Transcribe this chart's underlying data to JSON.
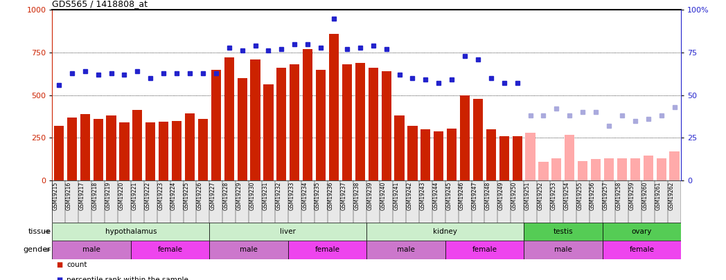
{
  "title": "GDS565 / 1418808_at",
  "samples": [
    "GSM19215",
    "GSM19216",
    "GSM19217",
    "GSM19218",
    "GSM19219",
    "GSM19220",
    "GSM19221",
    "GSM19222",
    "GSM19223",
    "GSM19224",
    "GSM19225",
    "GSM19226",
    "GSM19227",
    "GSM19228",
    "GSM19229",
    "GSM19230",
    "GSM19231",
    "GSM19232",
    "GSM19233",
    "GSM19234",
    "GSM19235",
    "GSM19236",
    "GSM19237",
    "GSM19238",
    "GSM19239",
    "GSM19240",
    "GSM19241",
    "GSM19242",
    "GSM19243",
    "GSM19244",
    "GSM19245",
    "GSM19246",
    "GSM19247",
    "GSM19248",
    "GSM19249",
    "GSM19250",
    "GSM19251",
    "GSM19252",
    "GSM19253",
    "GSM19254",
    "GSM19255",
    "GSM19256",
    "GSM19257",
    "GSM19258",
    "GSM19259",
    "GSM19260",
    "GSM19261",
    "GSM19262"
  ],
  "count_values": [
    320,
    370,
    390,
    360,
    380,
    340,
    415,
    340,
    345,
    350,
    395,
    360,
    650,
    720,
    600,
    710,
    565,
    660,
    680,
    770,
    650,
    860,
    680,
    690,
    660,
    640,
    380,
    320,
    300,
    290,
    305,
    500,
    480,
    300,
    260,
    260,
    null,
    null,
    null,
    null,
    null,
    null,
    null,
    null,
    null,
    null,
    null,
    null
  ],
  "count_absent": [
    null,
    null,
    null,
    null,
    null,
    null,
    null,
    null,
    null,
    null,
    null,
    null,
    null,
    null,
    null,
    null,
    null,
    null,
    null,
    null,
    null,
    null,
    null,
    null,
    null,
    null,
    null,
    null,
    null,
    null,
    null,
    null,
    null,
    null,
    null,
    null,
    280,
    110,
    130,
    270,
    115,
    125,
    130,
    130,
    130,
    145,
    130,
    170
  ],
  "rank_values": [
    56,
    63,
    64,
    62,
    63,
    62,
    64,
    60,
    63,
    63,
    63,
    63,
    63,
    78,
    76,
    79,
    76,
    77,
    80,
    80,
    78,
    95,
    77,
    78,
    79,
    77,
    62,
    60,
    59,
    57,
    59,
    73,
    71,
    60,
    57,
    57,
    null,
    null,
    null,
    null,
    null,
    null,
    null,
    null,
    null,
    null,
    null,
    null
  ],
  "rank_absent": [
    null,
    null,
    null,
    null,
    null,
    null,
    null,
    null,
    null,
    null,
    null,
    null,
    null,
    null,
    null,
    null,
    null,
    null,
    null,
    null,
    null,
    null,
    null,
    null,
    null,
    null,
    null,
    null,
    null,
    null,
    null,
    null,
    null,
    null,
    null,
    null,
    38,
    38,
    42,
    38,
    40,
    40,
    32,
    38,
    35,
    36,
    38,
    43
  ],
  "tissues": [
    {
      "name": "hypothalamus",
      "start": 0,
      "end": 12,
      "color": "#cceecc"
    },
    {
      "name": "liver",
      "start": 12,
      "end": 24,
      "color": "#cceecc"
    },
    {
      "name": "kidney",
      "start": 24,
      "end": 36,
      "color": "#cceecc"
    },
    {
      "name": "testis",
      "start": 36,
      "end": 42,
      "color": "#55cc55"
    },
    {
      "name": "ovary",
      "start": 42,
      "end": 48,
      "color": "#55cc55"
    }
  ],
  "genders": [
    {
      "name": "male",
      "start": 0,
      "end": 6,
      "color": "#cc77cc"
    },
    {
      "name": "female",
      "start": 6,
      "end": 12,
      "color": "#ee44ee"
    },
    {
      "name": "male",
      "start": 12,
      "end": 18,
      "color": "#cc77cc"
    },
    {
      "name": "female",
      "start": 18,
      "end": 24,
      "color": "#ee44ee"
    },
    {
      "name": "male",
      "start": 24,
      "end": 30,
      "color": "#cc77cc"
    },
    {
      "name": "female",
      "start": 30,
      "end": 36,
      "color": "#ee44ee"
    },
    {
      "name": "male",
      "start": 36,
      "end": 42,
      "color": "#cc77cc"
    },
    {
      "name": "female",
      "start": 42,
      "end": 48,
      "color": "#ee44ee"
    }
  ],
  "bar_color_present": "#cc2200",
  "bar_color_absent": "#ffaaaa",
  "dot_color_present": "#2222cc",
  "dot_color_absent": "#aaaadd",
  "ylim_left": [
    0,
    1000
  ],
  "ylim_right": [
    0,
    100
  ],
  "yticks_left": [
    0,
    250,
    500,
    750,
    1000
  ],
  "yticks_right": [
    0,
    25,
    50,
    75,
    100
  ],
  "grid_values": [
    250,
    500,
    750
  ],
  "background_color": "#ffffff"
}
